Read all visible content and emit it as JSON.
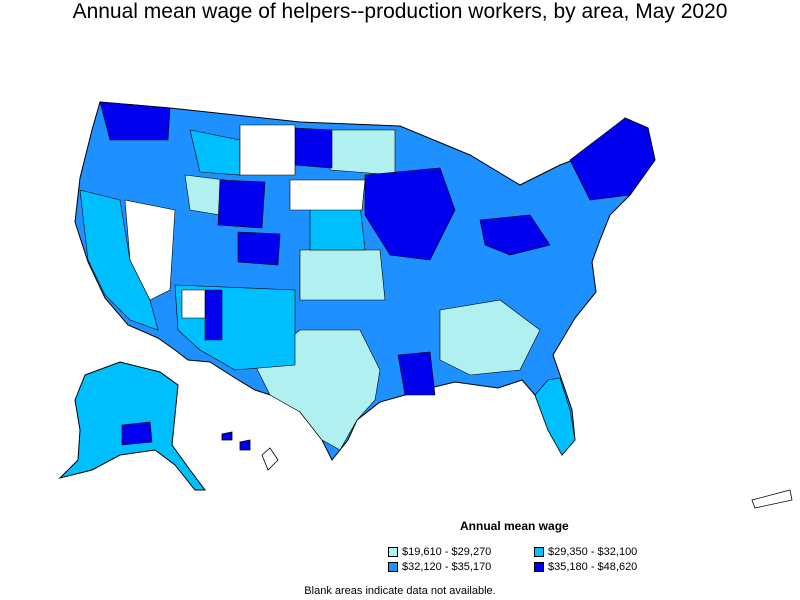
{
  "title": "Annual mean wage of helpers--production workers, by area, May 2020",
  "legend": {
    "title": "Annual mean wage",
    "items": [
      {
        "label": "$19,610 - $29,270",
        "color": "#b0f0f0"
      },
      {
        "label": "$29,350 - $32,100",
        "color": "#00bfff"
      },
      {
        "label": "$32,120 - $35,170",
        "color": "#1e90ff"
      },
      {
        "label": "$35,180 - $48,620",
        "color": "#0000ee"
      }
    ]
  },
  "footnote": "Blank areas indicate data not available.",
  "colors": {
    "no_data": "#ffffff",
    "boundary": "#000000"
  }
}
